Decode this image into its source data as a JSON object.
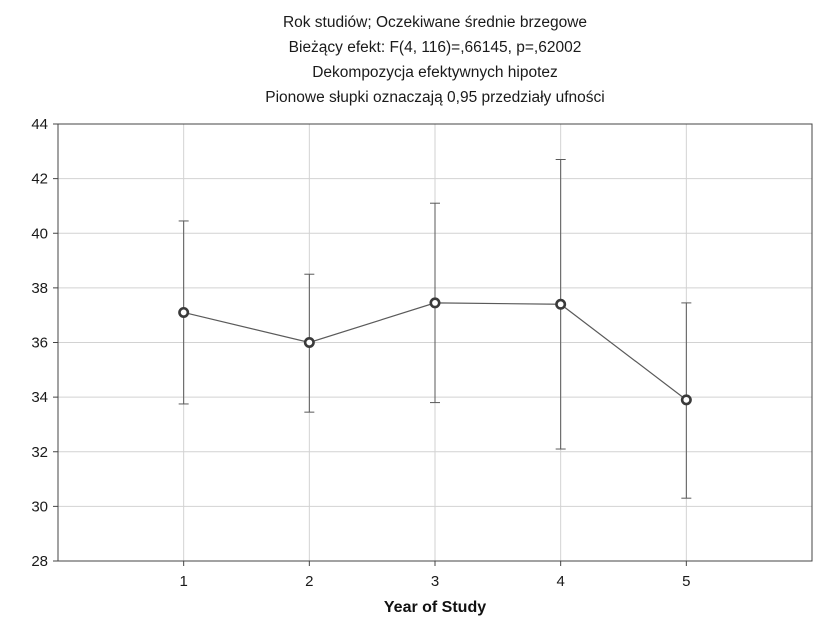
{
  "chart_data": {
    "type": "line",
    "title_lines": [
      "Rok studiów; Oczekiwane średnie brzegowe",
      "Bieżący efekt: F(4, 116)=,66145, p=,62002",
      "Dekompozycja efektywnych hipotez",
      "Pionowe słupki oznaczają 0,95 przedziały ufności"
    ],
    "xlabel": "Year of Study",
    "ylabel": "",
    "categories": [
      "1",
      "2",
      "3",
      "4",
      "5"
    ],
    "series": [
      {
        "values": [
          37.1,
          36.0,
          37.45,
          37.4,
          33.9
        ],
        "ci_lower": [
          33.75,
          33.45,
          33.8,
          32.1,
          30.3
        ],
        "ci_upper": [
          40.45,
          38.5,
          41.1,
          42.7,
          37.45
        ]
      }
    ],
    "ylim": [
      28,
      44
    ],
    "yticks": [
      "28",
      "30",
      "32",
      "34",
      "36",
      "38",
      "40",
      "42",
      "44"
    ],
    "xlim": [
      0,
      6
    ],
    "grid": true,
    "colors": {
      "line": "#5a5a5a",
      "marker": "#3a3a3a",
      "grid": "#d2d2d2"
    }
  }
}
